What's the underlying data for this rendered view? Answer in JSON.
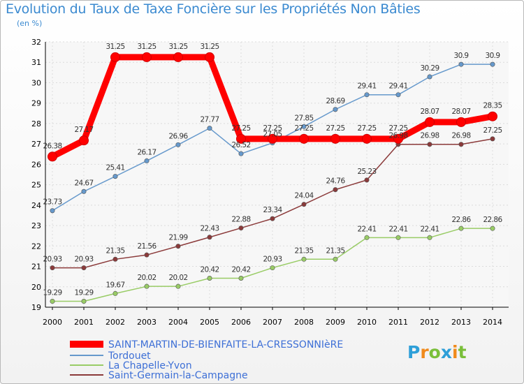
{
  "chart_data": {
    "type": "line",
    "title": "Evolution du Taux de Taxe Foncière sur les Propriétés Non Bâties",
    "subtitle": "(en %)",
    "x": [
      "2000",
      "2001",
      "2002",
      "2003",
      "2004",
      "2005",
      "2006",
      "2007",
      "2008",
      "2009",
      "2010",
      "2011",
      "2012",
      "2013",
      "2014"
    ],
    "ylim": [
      19,
      32
    ],
    "yticks": [
      19,
      20,
      21,
      22,
      23,
      24,
      25,
      26,
      27,
      28,
      29,
      30,
      31,
      32
    ],
    "grid": true,
    "series": [
      {
        "name": "SAINT-MARTIN-DE-BIENFAITE-LA-CRESSONNIèRE",
        "color": "#ff0000",
        "values": [
          26.38,
          27.17,
          31.25,
          31.25,
          31.25,
          31.25,
          27.25,
          27.25,
          27.25,
          27.25,
          27.25,
          27.25,
          28.07,
          28.07,
          28.35
        ],
        "labels": [
          "26.38",
          "27.17",
          "31.25",
          "31.25",
          "31.25",
          "31.25",
          "27.25",
          "27.25",
          "27.25",
          "27.25",
          "27.25",
          "27.25",
          "28.07",
          "28.07",
          "28.35"
        ]
      },
      {
        "name": "Tordouet",
        "color": "#6699cc",
        "values": [
          23.73,
          24.67,
          25.41,
          26.17,
          26.96,
          27.77,
          26.52,
          27.05,
          27.85,
          28.69,
          29.41,
          29.41,
          30.29,
          30.9,
          30.9
        ],
        "labels": [
          "23.73",
          "24.67",
          "25.41",
          "26.17",
          "26.96",
          "27.77",
          "26.52",
          "27.05",
          "27.85",
          "28.69",
          "29.41",
          "29.41",
          "30.29",
          "30.9",
          "30.9"
        ]
      },
      {
        "name": "La Chapelle-Yvon",
        "color": "#99cc66",
        "values": [
          19.29,
          19.29,
          19.67,
          20.02,
          20.02,
          20.42,
          20.42,
          20.93,
          21.35,
          21.35,
          22.41,
          22.41,
          22.41,
          22.86,
          22.86
        ],
        "labels": [
          "19.29",
          "19.29",
          "19.67",
          "20.02",
          "20.02",
          "20.42",
          "20.42",
          "20.93",
          "21.35",
          "21.35",
          "22.41",
          "22.41",
          "22.41",
          "22.86",
          "22.86"
        ]
      },
      {
        "name": "Saint-Germain-la-Campagne",
        "color": "#8b3a3a",
        "values": [
          20.93,
          20.93,
          21.35,
          21.56,
          21.99,
          22.43,
          22.88,
          23.34,
          24.04,
          24.76,
          25.23,
          26.98,
          26.98,
          26.98,
          27.25
        ],
        "labels": [
          "20.93",
          "20.93",
          "21.35",
          "21.56",
          "21.99",
          "22.43",
          "22.88",
          "23.34",
          "24.04",
          "24.76",
          "25.23",
          "26.98",
          "26.98",
          "26.98",
          "27.25"
        ]
      }
    ],
    "legend_position": "bottom-left"
  },
  "logo": {
    "letters": [
      "P",
      "r",
      "o",
      "x",
      "i",
      "t"
    ]
  }
}
